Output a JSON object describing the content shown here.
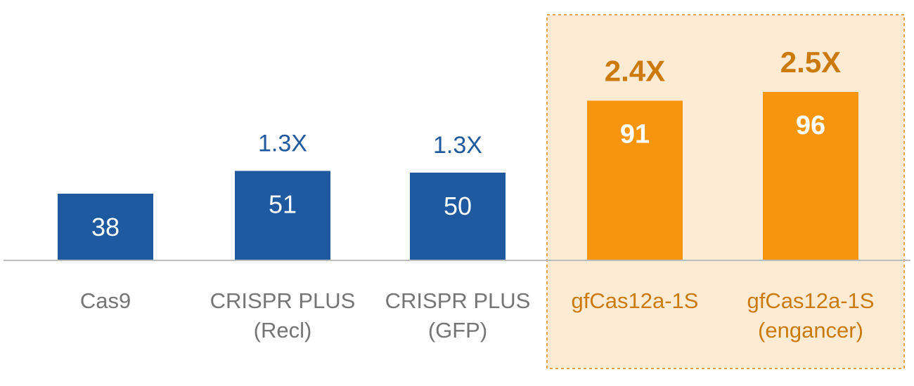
{
  "chart_data": {
    "type": "bar",
    "categories": [
      [
        "Cas9"
      ],
      [
        "CRISPR PLUS",
        "(Recl)"
      ],
      [
        "CRISPR PLUS",
        "(GFP)"
      ],
      [
        "gfCas12a-1S"
      ],
      [
        "gfCas12a-1S",
        "(engancer)"
      ]
    ],
    "values": [
      38,
      51,
      50,
      91,
      96
    ],
    "fold_labels": [
      "",
      "1.3X",
      "1.3X",
      "2.4X",
      "2.5X"
    ],
    "highlighted": [
      false,
      false,
      false,
      true,
      true
    ],
    "title": "",
    "xlabel": "",
    "ylabel": "",
    "ylim": [
      0,
      100
    ],
    "grid": false,
    "legend": "none",
    "colors": {
      "standard_bar": "#1f5aa0",
      "highlight_bar": "#f7950f",
      "standard_fold_text": "#1f5aa0",
      "highlight_fold_text": "#cc7a0b",
      "standard_category_text": "#757575",
      "highlight_category_text": "#cc7a0b",
      "value_text": "#ffffff",
      "highlight_box_fill": "#fdebd3",
      "highlight_box_border": "#e9a24a",
      "baseline": "#bdbdbd"
    }
  }
}
